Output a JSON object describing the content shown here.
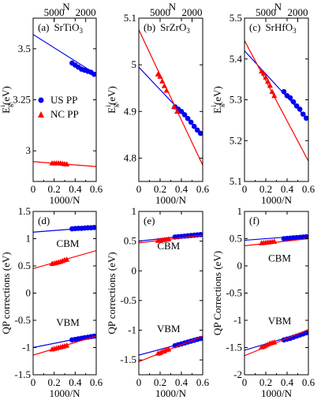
{
  "chart_data": [
    {
      "type": "scatter",
      "panel": "(a)",
      "material": "SrTiO",
      "material_sub": "3",
      "ylabel": "E",
      "ylabel_sub": "g",
      "ylabel_sup": "i",
      "ylabel_unit": "(eV)",
      "xlabel": "1000/N",
      "top_xlabel": "N",
      "xlim": [
        0,
        0.6
      ],
      "ylim": [
        2.85,
        3.65
      ],
      "xticks": [
        "0",
        "0.2",
        "0.4",
        "0.6"
      ],
      "yticks": [
        {
          "value": 3.5,
          "label": "3.5"
        },
        {
          "value": 3.25,
          "label": "3.25"
        },
        {
          "value": 3.0,
          "label": "3"
        }
      ],
      "top_ticks": [
        {
          "value": 0.2,
          "label": "5000"
        },
        {
          "value": 0.5,
          "label": "2000"
        }
      ],
      "legend": [
        "US PP",
        "NC PP"
      ],
      "series": [
        {
          "name": "US PP",
          "color": "#0000ee",
          "marker": "circle",
          "x": [
            0.37,
            0.4,
            0.43,
            0.46,
            0.49,
            0.52,
            0.55,
            0.58
          ],
          "y": [
            3.43,
            3.42,
            3.41,
            3.4,
            3.395,
            3.39,
            3.385,
            3.375
          ],
          "fit": [
            [
              0,
              3.57
            ],
            [
              0.6,
              3.375
            ]
          ]
        },
        {
          "name": "NC PP",
          "color": "#ff0000",
          "marker": "triangle",
          "x": [
            0.18,
            0.2,
            0.22,
            0.24,
            0.26,
            0.28,
            0.3,
            0.32
          ],
          "y": [
            2.94,
            2.94,
            2.94,
            2.94,
            2.94,
            2.938,
            2.936,
            2.935
          ],
          "fit": [
            [
              0,
              2.947
            ],
            [
              0.6,
              2.923
            ]
          ]
        }
      ]
    },
    {
      "type": "scatter",
      "panel": "(b)",
      "material": "SrZrO",
      "material_sub": "3",
      "ylabel": "E",
      "ylabel_sub": "g",
      "ylabel_sup": "i",
      "ylabel_unit": "(eV)",
      "xlabel": "1000/N",
      "top_xlabel": "N",
      "xlim": [
        0,
        0.6
      ],
      "ylim": [
        4.75,
        5.1
      ],
      "xticks": [
        "0",
        "0.2",
        "0.4",
        "0.6"
      ],
      "yticks": [
        {
          "value": 5.1,
          "label": "5.1"
        },
        {
          "value": 5.0,
          "label": "5"
        },
        {
          "value": 4.9,
          "label": "4.9"
        },
        {
          "value": 4.8,
          "label": "4.8"
        }
      ],
      "top_ticks": [
        {
          "value": 0.2,
          "label": "5000"
        },
        {
          "value": 0.5,
          "label": "2000"
        }
      ],
      "series": [
        {
          "name": "US PP",
          "color": "#0000ee",
          "marker": "circle",
          "x": [
            0.34,
            0.37,
            0.4,
            0.43,
            0.46,
            0.49,
            0.52,
            0.55,
            0.58
          ],
          "y": [
            4.91,
            4.905,
            4.9,
            4.893,
            4.885,
            4.877,
            4.868,
            4.86,
            4.853
          ],
          "fit": [
            [
              0,
              4.995
            ],
            [
              0.6,
              4.85
            ]
          ]
        },
        {
          "name": "NC PP",
          "color": "#ff0000",
          "marker": "triangle",
          "x": [
            0.18,
            0.2,
            0.22,
            0.24,
            0.26,
            0.33,
            0.36
          ],
          "y": [
            4.98,
            4.975,
            4.965,
            4.955,
            4.945,
            4.91,
            4.9
          ],
          "fit": [
            [
              0,
              5.075
            ],
            [
              0.6,
              4.785
            ]
          ]
        }
      ]
    },
    {
      "type": "scatter",
      "panel": "(c)",
      "material": "SrHfO",
      "material_sub": "3",
      "ylabel": "E",
      "ylabel_sub": "g",
      "ylabel_sup": "i",
      "ylabel_unit": "(eV)",
      "xlabel": "1000/N",
      "top_xlabel": "N",
      "xlim": [
        0,
        0.6
      ],
      "ylim": [
        5.1,
        5.5
      ],
      "xticks": [
        "0",
        "0.2",
        "0.4",
        "0.6"
      ],
      "yticks": [
        {
          "value": 5.5,
          "label": "5.5"
        },
        {
          "value": 5.4,
          "label": "5.4"
        },
        {
          "value": 5.3,
          "label": "5.3"
        },
        {
          "value": 5.2,
          "label": "5.2"
        },
        {
          "value": 5.1,
          "label": "5.1"
        }
      ],
      "top_ticks": [
        {
          "value": 0.2,
          "label": "5000"
        },
        {
          "value": 0.5,
          "label": "2000"
        }
      ],
      "series": [
        {
          "name": "US PP",
          "color": "#0000ee",
          "marker": "circle",
          "x": [
            0.37,
            0.4,
            0.43,
            0.46,
            0.49,
            0.52,
            0.55,
            0.58
          ],
          "y": [
            5.32,
            5.31,
            5.305,
            5.295,
            5.285,
            5.277,
            5.265,
            5.255
          ],
          "fit": [
            [
              0,
              5.42
            ],
            [
              0.6,
              5.25
            ]
          ]
        },
        {
          "name": "NC PP",
          "color": "#ff0000",
          "marker": "triangle",
          "x": [
            0.16,
            0.18,
            0.2,
            0.22,
            0.24,
            0.26,
            0.28
          ],
          "y": [
            5.37,
            5.365,
            5.355,
            5.345,
            5.335,
            5.32,
            5.31
          ],
          "fit": [
            [
              0,
              5.445
            ],
            [
              0.6,
              5.15
            ]
          ]
        }
      ]
    },
    {
      "type": "scatter",
      "panel": "(d)",
      "ylabel": "QP corrections (eV)",
      "xlabel": "1000/N",
      "xlim": [
        0,
        0.6
      ],
      "ylim": [
        -1.5,
        1.5
      ],
      "xticks": [
        "0",
        "0.2",
        "0.4",
        "0.6"
      ],
      "yticks": [
        {
          "value": 1.5,
          "label": "1.5"
        },
        {
          "value": 1.0,
          "label": "1"
        },
        {
          "value": 0.5,
          "label": "0.5"
        },
        {
          "value": 0.0,
          "label": "0"
        },
        {
          "value": -0.5,
          "label": "-0.5"
        },
        {
          "value": -1.0,
          "label": "-1"
        },
        {
          "value": -1.5,
          "label": "-1.5"
        }
      ],
      "annotations": [
        {
          "text": "CBM",
          "x": 0.33,
          "y": 0.85
        },
        {
          "text": "VBM",
          "x": 0.33,
          "y": -0.6
        }
      ],
      "series": [
        {
          "name": "US PP CBM",
          "color": "#0000ee",
          "marker": "circle",
          "x": [
            0.37,
            0.4,
            0.43,
            0.46,
            0.49,
            0.52,
            0.55,
            0.58
          ],
          "y": [
            1.18,
            1.185,
            1.19,
            1.19,
            1.195,
            1.2,
            1.2,
            1.205
          ],
          "fit": [
            [
              0,
              1.12
            ],
            [
              0.6,
              1.21
            ]
          ]
        },
        {
          "name": "NC PP CBM",
          "color": "#ff0000",
          "marker": "triangle",
          "x": [
            0.18,
            0.2,
            0.22,
            0.24,
            0.26,
            0.28,
            0.3,
            0.32
          ],
          "y": [
            0.54,
            0.55,
            0.56,
            0.57,
            0.58,
            0.595,
            0.61,
            0.62
          ],
          "fit": [
            [
              0,
              0.45
            ],
            [
              0.6,
              0.78
            ]
          ]
        },
        {
          "name": "US PP VBM",
          "color": "#0000ee",
          "marker": "circle",
          "x": [
            0.37,
            0.4,
            0.43,
            0.46,
            0.49,
            0.52,
            0.55,
            0.58
          ],
          "y": [
            -0.86,
            -0.85,
            -0.84,
            -0.83,
            -0.82,
            -0.81,
            -0.8,
            -0.79
          ],
          "fit": [
            [
              0,
              -1.0
            ],
            [
              0.6,
              -0.77
            ]
          ]
        },
        {
          "name": "NC PP VBM",
          "color": "#ff0000",
          "marker": "triangle",
          "x": [
            0.18,
            0.2,
            0.22,
            0.24,
            0.26,
            0.28,
            0.3,
            0.32
          ],
          "y": [
            -1.03,
            -1.02,
            -1.01,
            -1.0,
            -0.99,
            -0.98,
            -0.97,
            -0.96
          ],
          "fit": [
            [
              0,
              -1.14
            ],
            [
              0.6,
              -0.79
            ]
          ]
        }
      ]
    },
    {
      "type": "scatter",
      "panel": "(e)",
      "ylabel": "QP corrections (eV)",
      "xlabel": "1000/N",
      "xlim": [
        0,
        0.6
      ],
      "ylim": [
        -1.75,
        1.0
      ],
      "xticks": [
        "0",
        "0.2",
        "0.4",
        "0.6"
      ],
      "yticks": [
        {
          "value": 1.0,
          "label": "1"
        },
        {
          "value": 0.5,
          "label": "0.5"
        },
        {
          "value": 0.0,
          "label": "0"
        },
        {
          "value": -0.5,
          "label": "-0.5"
        },
        {
          "value": -1.0,
          "label": "-1"
        },
        {
          "value": -1.5,
          "label": "-1.5"
        }
      ],
      "annotations": [
        {
          "text": "CBM",
          "x": 0.28,
          "y": 0.36
        },
        {
          "text": "VBM",
          "x": 0.28,
          "y": -1.03
        }
      ],
      "series": [
        {
          "name": "US PP CBM",
          "color": "#0000ee",
          "marker": "circle",
          "x": [
            0.34,
            0.37,
            0.4,
            0.43,
            0.46,
            0.49,
            0.52,
            0.55,
            0.58
          ],
          "y": [
            0.57,
            0.575,
            0.58,
            0.585,
            0.59,
            0.595,
            0.6,
            0.605,
            0.61
          ],
          "fit": [
            [
              0,
              0.5
            ],
            [
              0.6,
              0.62
            ]
          ]
        },
        {
          "name": "NC PP CBM",
          "color": "#ff0000",
          "marker": "triangle",
          "x": [
            0.18,
            0.2,
            0.22,
            0.24,
            0.26,
            0.28
          ],
          "y": [
            0.51,
            0.515,
            0.52,
            0.525,
            0.53,
            0.535
          ],
          "fit": [
            [
              0,
              0.47
            ],
            [
              0.6,
              0.6
            ]
          ]
        },
        {
          "name": "US PP VBM",
          "color": "#0000ee",
          "marker": "circle",
          "x": [
            0.34,
            0.37,
            0.4,
            0.43,
            0.46,
            0.49,
            0.52,
            0.55,
            0.58
          ],
          "y": [
            -1.26,
            -1.245,
            -1.23,
            -1.215,
            -1.2,
            -1.185,
            -1.17,
            -1.155,
            -1.14
          ],
          "fit": [
            [
              0,
              -1.42
            ],
            [
              0.6,
              -1.13
            ]
          ]
        },
        {
          "name": "NC PP VBM",
          "color": "#ff0000",
          "marker": "triangle",
          "x": [
            0.18,
            0.2,
            0.22,
            0.24,
            0.26,
            0.28
          ],
          "y": [
            -1.39,
            -1.38,
            -1.36,
            -1.35,
            -1.33,
            -1.32
          ],
          "fit": [
            [
              0,
              -1.53
            ],
            [
              0.6,
              -1.1
            ]
          ]
        }
      ]
    },
    {
      "type": "scatter",
      "panel": "(f)",
      "ylabel": "QP Corrections (eV)",
      "xlabel": "1000/N",
      "xlim": [
        0,
        0.6
      ],
      "ylim": [
        -2.0,
        1.0
      ],
      "xticks": [
        "0",
        "0.2",
        "0.4",
        "0.6"
      ],
      "yticks": [
        {
          "value": 1.0,
          "label": "1"
        },
        {
          "value": 0.5,
          "label": "0.5"
        },
        {
          "value": 0.0,
          "label": "0"
        },
        {
          "value": -0.5,
          "label": "-0.5"
        },
        {
          "value": -1.0,
          "label": "-1"
        },
        {
          "value": -1.5,
          "label": "-1.5"
        },
        {
          "value": -2.0,
          "label": "-2"
        }
      ],
      "annotations": [
        {
          "text": "CBM",
          "x": 0.33,
          "y": 0.08
        },
        {
          "text": "VBM",
          "x": 0.33,
          "y": -1.07
        }
      ],
      "series": [
        {
          "name": "US PP CBM",
          "color": "#0000ee",
          "marker": "circle",
          "x": [
            0.37,
            0.4,
            0.43,
            0.46,
            0.49,
            0.52,
            0.55,
            0.58
          ],
          "y": [
            0.5,
            0.505,
            0.51,
            0.515,
            0.52,
            0.525,
            0.53,
            0.535
          ],
          "fit": [
            [
              0,
              0.47
            ],
            [
              0.6,
              0.56
            ]
          ]
        },
        {
          "name": "NC PP CBM",
          "color": "#ff0000",
          "marker": "triangle",
          "x": [
            0.16,
            0.18,
            0.2,
            0.22,
            0.24,
            0.26,
            0.28
          ],
          "y": [
            0.42,
            0.425,
            0.43,
            0.435,
            0.44,
            0.445,
            0.45
          ],
          "fit": [
            [
              0,
              0.37
            ],
            [
              0.6,
              0.5
            ]
          ]
        },
        {
          "name": "US PP VBM",
          "color": "#0000ee",
          "marker": "circle",
          "x": [
            0.37,
            0.4,
            0.43,
            0.46,
            0.49,
            0.52,
            0.55,
            0.58
          ],
          "y": [
            -1.36,
            -1.345,
            -1.33,
            -1.31,
            -1.29,
            -1.27,
            -1.25,
            -1.23
          ],
          "fit": [
            [
              0,
              -1.55
            ],
            [
              0.6,
              -1.2
            ]
          ]
        },
        {
          "name": "NC PP VBM",
          "color": "#ff0000",
          "marker": "triangle",
          "x": [
            0.16,
            0.18,
            0.2,
            0.22,
            0.24,
            0.26,
            0.28
          ],
          "y": [
            -1.49,
            -1.48,
            -1.46,
            -1.44,
            -1.42,
            -1.41,
            -1.4
          ],
          "fit": [
            [
              0,
              -1.65
            ],
            [
              0.6,
              -1.17
            ]
          ]
        }
      ]
    }
  ]
}
